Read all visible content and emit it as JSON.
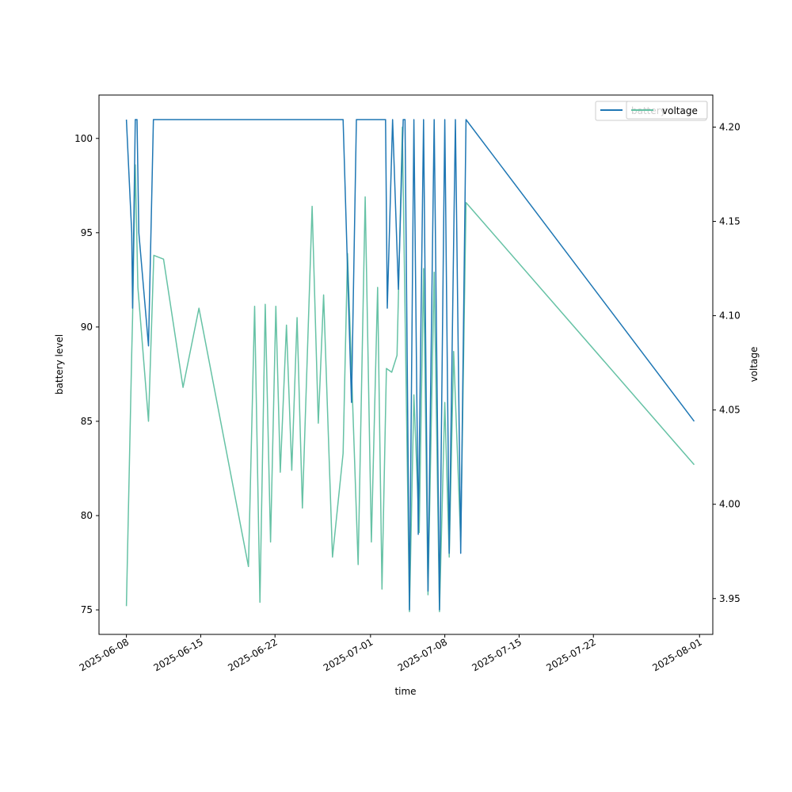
{
  "chart_data": {
    "type": "line",
    "xlabel": "time",
    "ylabel_left": "battery level",
    "ylabel_right": "voltage",
    "xlim": [
      "2025-06-05T10:00",
      "2025-08-02T06:00"
    ],
    "ylim_left": [
      73.7,
      102.3
    ],
    "ylim_right": [
      3.931,
      4.217
    ],
    "x_ticks": [
      "2025-06-08",
      "2025-06-15",
      "2025-06-22",
      "2025-07-01",
      "2025-07-08",
      "2025-07-15",
      "2025-07-22",
      "2025-08-01"
    ],
    "y_ticks_left": [
      75,
      80,
      85,
      90,
      95,
      100
    ],
    "y_ticks_right": [
      3.95,
      4.0,
      4.05,
      4.1,
      4.15,
      4.2
    ],
    "legend_left": [
      "battery"
    ],
    "legend_right": [
      "voltage"
    ],
    "legend_position": "top-right",
    "series": [
      {
        "name": "battery",
        "axis": "left",
        "color": "#1f77b4",
        "points": [
          [
            "2025-06-08T00:00",
            101
          ],
          [
            "2025-06-08T12:00",
            95
          ],
          [
            "2025-06-08T14:00",
            91
          ],
          [
            "2025-06-08T20:00",
            101
          ],
          [
            "2025-06-09T00:00",
            101
          ],
          [
            "2025-06-09T04:00",
            95
          ],
          [
            "2025-06-10T02:00",
            89
          ],
          [
            "2025-06-10T13:00",
            101
          ],
          [
            "2025-06-28T10:00",
            101
          ],
          [
            "2025-06-29T05:00",
            86
          ],
          [
            "2025-06-29T16:00",
            101
          ],
          [
            "2025-07-02T10:00",
            101
          ],
          [
            "2025-07-02T14:00",
            91
          ],
          [
            "2025-07-03T02:00",
            101
          ],
          [
            "2025-07-03T15:00",
            92
          ],
          [
            "2025-07-04T02:00",
            101
          ],
          [
            "2025-07-04T06:00",
            101
          ],
          [
            "2025-07-04T16:00",
            75
          ],
          [
            "2025-07-05T02:00",
            101
          ],
          [
            "2025-07-05T12:00",
            79
          ],
          [
            "2025-07-06T00:00",
            101
          ],
          [
            "2025-07-06T10:00",
            76
          ],
          [
            "2025-07-07T00:00",
            101
          ],
          [
            "2025-07-07T12:00",
            75
          ],
          [
            "2025-07-08T00:00",
            101
          ],
          [
            "2025-07-08T10:00",
            78
          ],
          [
            "2025-07-09T00:00",
            101
          ],
          [
            "2025-07-09T12:00",
            78
          ],
          [
            "2025-07-10T00:00",
            101
          ],
          [
            "2025-07-31T12:00",
            85
          ]
        ]
      },
      {
        "name": "voltage",
        "axis": "right",
        "color": "#66c2a5",
        "points": [
          [
            "2025-06-08T00:00",
            3.946
          ],
          [
            "2025-06-08T12:00",
            4.08
          ],
          [
            "2025-06-08T14:00",
            4.099
          ],
          [
            "2025-06-08T20:00",
            4.18
          ],
          [
            "2025-06-09T02:00",
            4.115
          ],
          [
            "2025-06-10T02:00",
            4.044
          ],
          [
            "2025-06-10T14:00",
            4.132
          ],
          [
            "2025-06-11T12:00",
            4.13
          ],
          [
            "2025-06-13T08:00",
            4.062
          ],
          [
            "2025-06-14T20:00",
            4.104
          ],
          [
            "2025-06-19T12:00",
            3.967
          ],
          [
            "2025-06-20T02:00",
            4.105
          ],
          [
            "2025-06-20T14:00",
            3.948
          ],
          [
            "2025-06-21T02:00",
            4.106
          ],
          [
            "2025-06-21T14:00",
            3.98
          ],
          [
            "2025-06-22T02:00",
            4.105
          ],
          [
            "2025-06-22T12:00",
            4.017
          ],
          [
            "2025-06-23T02:00",
            4.095
          ],
          [
            "2025-06-23T14:00",
            4.018
          ],
          [
            "2025-06-24T02:00",
            4.099
          ],
          [
            "2025-06-24T14:00",
            3.998
          ],
          [
            "2025-06-25T12:00",
            4.158
          ],
          [
            "2025-06-26T02:00",
            4.043
          ],
          [
            "2025-06-26T14:00",
            4.111
          ],
          [
            "2025-06-27T10:00",
            3.972
          ],
          [
            "2025-06-28T10:00",
            4.027
          ],
          [
            "2025-06-28T20:00",
            4.133
          ],
          [
            "2025-06-29T20:00",
            3.968
          ],
          [
            "2025-06-30T12:00",
            4.163
          ],
          [
            "2025-07-01T02:00",
            3.98
          ],
          [
            "2025-07-01T16:00",
            4.115
          ],
          [
            "2025-07-02T02:00",
            3.955
          ],
          [
            "2025-07-02T12:00",
            4.072
          ],
          [
            "2025-07-03T00:00",
            4.07
          ],
          [
            "2025-07-03T12:00",
            4.079
          ],
          [
            "2025-07-04T00:00",
            4.2
          ],
          [
            "2025-07-04T16:00",
            3.943
          ],
          [
            "2025-07-05T02:00",
            4.058
          ],
          [
            "2025-07-05T14:00",
            3.985
          ],
          [
            "2025-07-06T00:00",
            4.125
          ],
          [
            "2025-07-06T10:00",
            3.952
          ],
          [
            "2025-07-07T00:00",
            4.123
          ],
          [
            "2025-07-07T12:00",
            3.943
          ],
          [
            "2025-07-08T00:00",
            4.054
          ],
          [
            "2025-07-08T10:00",
            3.972
          ],
          [
            "2025-07-08T20:00",
            4.081
          ],
          [
            "2025-07-09T12:00",
            3.98
          ],
          [
            "2025-07-10T00:00",
            4.16
          ],
          [
            "2025-07-31T12:00",
            4.021
          ]
        ]
      }
    ]
  }
}
